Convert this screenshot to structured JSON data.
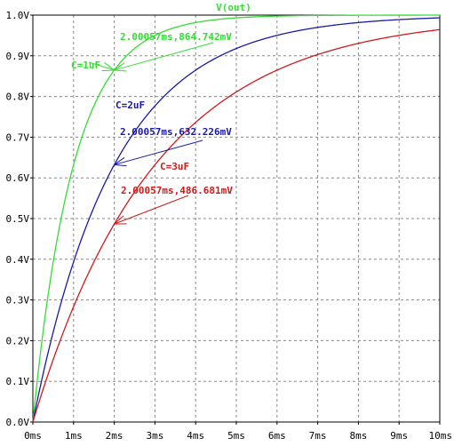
{
  "chart_data": {
    "type": "line",
    "title": "V(out)",
    "xlabel": "",
    "ylabel": "",
    "xlim": [
      0,
      10
    ],
    "ylim": [
      0,
      1.0
    ],
    "x_ticks": [
      "0ms",
      "1ms",
      "2ms",
      "3ms",
      "4ms",
      "5ms",
      "6ms",
      "7ms",
      "8ms",
      "9ms",
      "10ms"
    ],
    "y_ticks": [
      "0.0V",
      "0.1V",
      "0.2V",
      "0.3V",
      "0.4V",
      "0.5V",
      "0.6V",
      "0.7V",
      "0.8V",
      "0.9V",
      "1.0V"
    ],
    "grid": true,
    "series": [
      {
        "name": "C=1uF",
        "tau_ms": 1,
        "color": "#33dd33",
        "x": [
          0,
          0.5,
          1,
          1.5,
          2,
          3,
          4,
          5,
          6,
          7,
          8,
          9,
          10
        ],
        "y": [
          0,
          0.393,
          0.632,
          0.777,
          0.865,
          0.95,
          0.982,
          0.993,
          0.998,
          0.999,
          1.0,
          1.0,
          1.0
        ]
      },
      {
        "name": "C=2uF",
        "tau_ms": 2,
        "color": "#1a1aa6",
        "x": [
          0,
          0.5,
          1,
          1.5,
          2,
          3,
          4,
          5,
          6,
          7,
          8,
          9,
          10
        ],
        "y": [
          0,
          0.221,
          0.393,
          0.528,
          0.632,
          0.777,
          0.865,
          0.918,
          0.95,
          0.97,
          0.982,
          0.989,
          0.993
        ]
      },
      {
        "name": "C=3uF",
        "tau_ms": 3,
        "color": "#d01a1a",
        "x": [
          0,
          0.5,
          1,
          1.5,
          2,
          3,
          4,
          5,
          6,
          7,
          8,
          9,
          10
        ],
        "y": [
          0,
          0.154,
          0.283,
          0.393,
          0.487,
          0.632,
          0.736,
          0.811,
          0.865,
          0.903,
          0.931,
          0.95,
          0.964
        ]
      }
    ],
    "annotations": [
      {
        "series": "C=1uF",
        "text": "2.00057ms,864.742mV",
        "x": 2.00057,
        "y": 0.864742
      },
      {
        "series": "C=2uF",
        "text": "2.00057ms,632.226mV",
        "x": 2.00057,
        "y": 0.632226
      },
      {
        "series": "C=3uF",
        "text": "2.00057ms,486.681mV",
        "x": 2.00057,
        "y": 0.486681
      }
    ]
  }
}
